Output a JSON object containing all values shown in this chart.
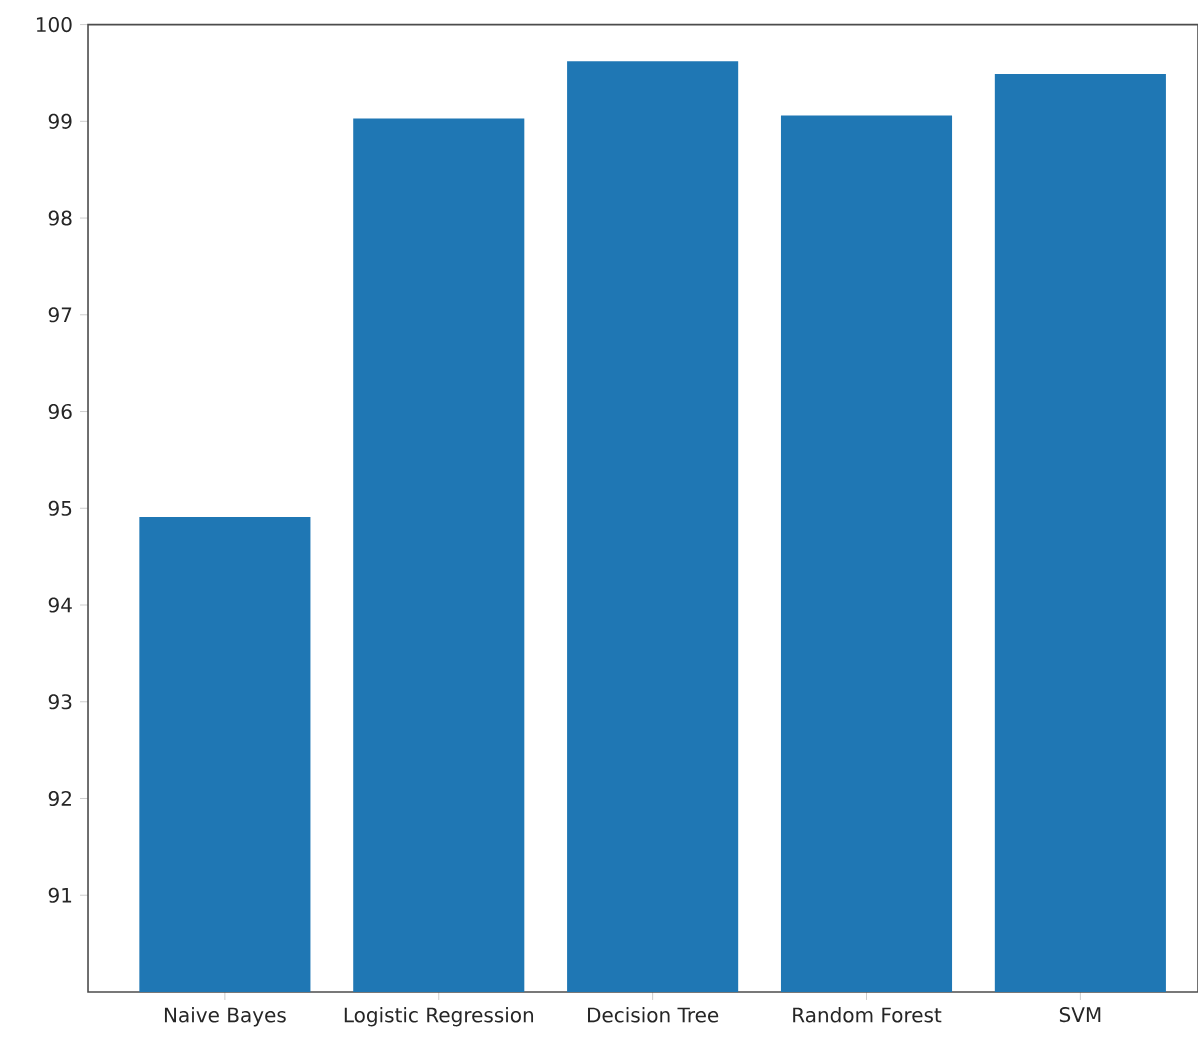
{
  "chart_data": {
    "type": "bar",
    "categories": [
      "Naive Bayes",
      "Logistic Regression",
      "Decision Tree",
      "Random Forest",
      "SVM"
    ],
    "values": [
      94.91,
      99.03,
      99.62,
      99.06,
      99.49
    ],
    "color": "#1f77b4",
    "ylim": [
      90,
      100
    ],
    "yticks": [
      91,
      92,
      93,
      94,
      95,
      96,
      97,
      98,
      99,
      100
    ]
  }
}
